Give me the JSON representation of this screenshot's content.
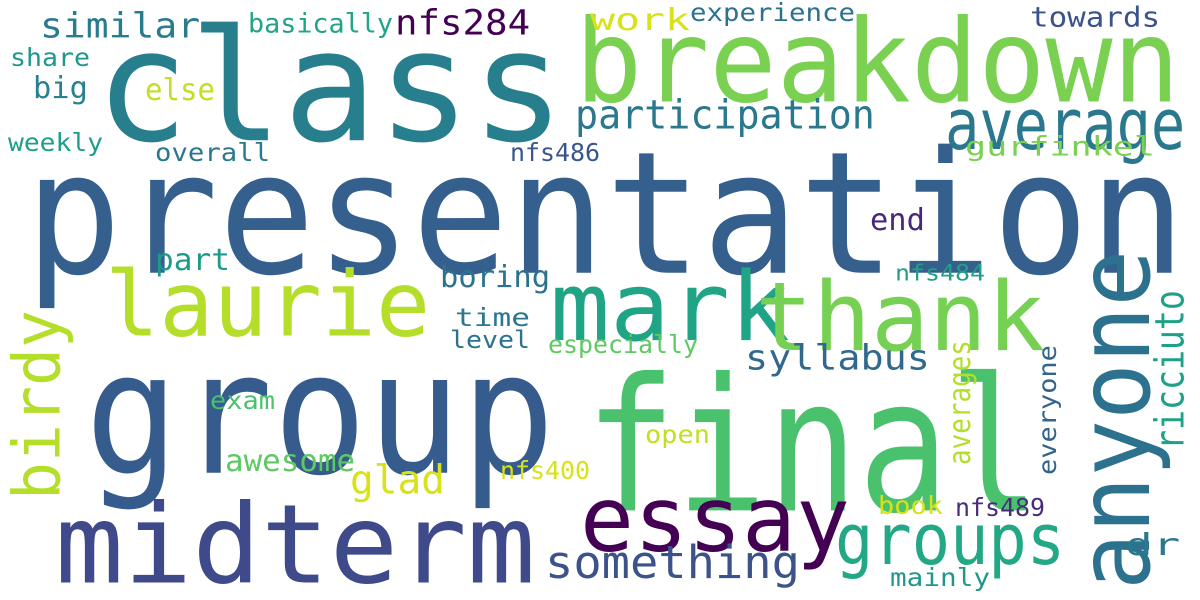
{
  "words": [
    {
      "text": "presentation",
      "color": "#35608d",
      "rotated": false
    },
    {
      "text": "class",
      "color": "#277f8e",
      "rotated": false
    },
    {
      "text": "group",
      "color": "#365c8d",
      "rotated": false
    },
    {
      "text": "final",
      "color": "#4ac16d",
      "rotated": false
    },
    {
      "text": "breakdown",
      "color": "#7ad151",
      "rotated": false
    },
    {
      "text": "midterm",
      "color": "#3e4a89",
      "rotated": false
    },
    {
      "text": "essay",
      "color": "#440154",
      "rotated": false
    },
    {
      "text": "anyone",
      "color": "#2c728e",
      "rotated": true
    },
    {
      "text": "mark",
      "color": "#20a486",
      "rotated": false
    },
    {
      "text": "thank",
      "color": "#75d054",
      "rotated": false
    },
    {
      "text": "laurie",
      "color": "#b5de2b",
      "rotated": false
    },
    {
      "text": "average",
      "color": "#2a788e",
      "rotated": false
    },
    {
      "text": "groups",
      "color": "#22a884",
      "rotated": false
    },
    {
      "text": "birdy",
      "color": "#b5de2b",
      "rotated": true
    },
    {
      "text": "something",
      "color": "#3b528b",
      "rotated": false
    },
    {
      "text": "ricciuto",
      "color": "#1fa187",
      "rotated": true
    },
    {
      "text": "participation",
      "color": "#2a788e",
      "rotated": false
    },
    {
      "text": "nfs284",
      "color": "#440154",
      "rotated": false
    },
    {
      "text": "similar",
      "color": "#287c8e",
      "rotated": false
    },
    {
      "text": "syllabus",
      "color": "#31688e",
      "rotated": false
    },
    {
      "text": "glad",
      "color": "#d8e219",
      "rotated": false
    },
    {
      "text": "dr",
      "color": "#2a788e",
      "rotated": false
    },
    {
      "text": "end",
      "color": "#482878",
      "rotated": false
    },
    {
      "text": "gurfinkel",
      "color": "#7ad151",
      "rotated": false
    },
    {
      "text": "awesome",
      "color": "#5ec962",
      "rotated": false
    },
    {
      "text": "boring",
      "color": "#2c728e",
      "rotated": false
    },
    {
      "text": "basically",
      "color": "#20a486",
      "rotated": false
    },
    {
      "text": "towards",
      "color": "#3b528b",
      "rotated": false
    },
    {
      "text": "experience",
      "color": "#2c728e",
      "rotated": false
    },
    {
      "text": "work",
      "color": "#d8e219",
      "rotated": false
    },
    {
      "text": "share",
      "color": "#1f988b",
      "rotated": false
    },
    {
      "text": "big",
      "color": "#26828e",
      "rotated": false
    },
    {
      "text": "else",
      "color": "#c2df23",
      "rotated": false
    },
    {
      "text": "weekly",
      "color": "#1f9e89",
      "rotated": false
    },
    {
      "text": "overall",
      "color": "#2a788e",
      "rotated": false
    },
    {
      "text": "nfs486",
      "color": "#39568c",
      "rotated": false
    },
    {
      "text": "part",
      "color": "#1f9a8a",
      "rotated": false
    },
    {
      "text": "nfs484",
      "color": "#1fa187",
      "rotated": false
    },
    {
      "text": "time",
      "color": "#2a788e",
      "rotated": false
    },
    {
      "text": "level",
      "color": "#2c728e",
      "rotated": false
    },
    {
      "text": "especially",
      "color": "#5ec962",
      "rotated": false
    },
    {
      "text": "exam",
      "color": "#4ac16d",
      "rotated": false
    },
    {
      "text": "open",
      "color": "#c2df23",
      "rotated": false
    },
    {
      "text": "nfs400",
      "color": "#d8e219",
      "rotated": false
    },
    {
      "text": "averages",
      "color": "#b5de2b",
      "rotated": true
    },
    {
      "text": "everyone",
      "color": "#32648e",
      "rotated": true
    },
    {
      "text": "book",
      "color": "#d8e219",
      "rotated": false
    },
    {
      "text": "nfs489",
      "color": "#472d7b",
      "rotated": false
    },
    {
      "text": "mainly",
      "color": "#1f988b",
      "rotated": false
    }
  ]
}
